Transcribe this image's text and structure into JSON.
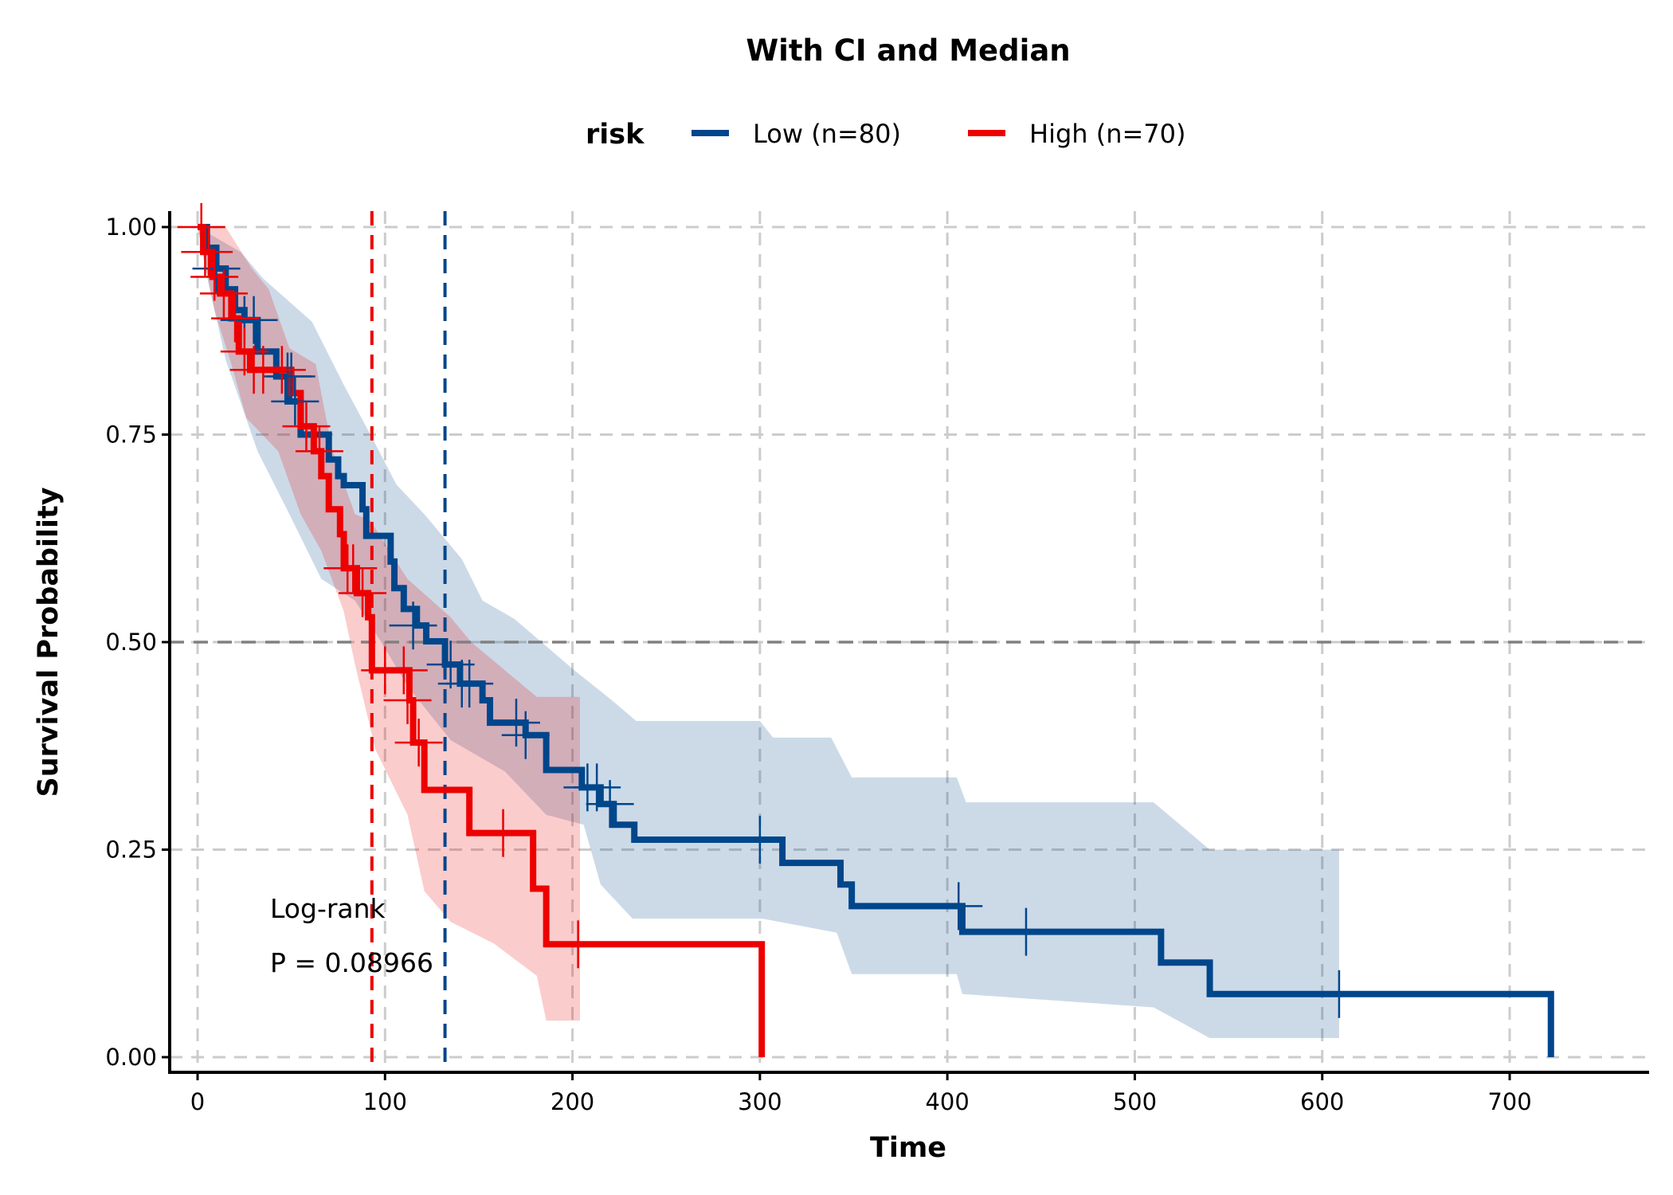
{
  "chart_data": {
    "type": "line",
    "subtype": "kaplan-meier step",
    "title": "With CI and Median",
    "xlabel": "Time",
    "ylabel": "Survival Probability",
    "xlim": [
      -15,
      775
    ],
    "ylim": [
      -0.018,
      1.02
    ],
    "x_ticks": [
      "0",
      "100",
      "200",
      "300",
      "400",
      "500",
      "600",
      "700"
    ],
    "y_ticks": [
      "0.00",
      "0.25",
      "0.50",
      "0.75",
      "1.00"
    ],
    "grid": true,
    "legend": {
      "title": "risk",
      "placement": "top"
    },
    "reference_line_y": 0.5,
    "annotation": {
      "line1": "Log-rank",
      "line2": "P = 0.08966"
    },
    "series": [
      {
        "name": "Low (n=80)",
        "color": "#00468B",
        "median": 132,
        "steps": [
          [
            0,
            1.0
          ],
          [
            5,
            0.975
          ],
          [
            10,
            0.95
          ],
          [
            15,
            0.925
          ],
          [
            20,
            0.9
          ],
          [
            25,
            0.888
          ],
          [
            32,
            0.85
          ],
          [
            42,
            0.82
          ],
          [
            48,
            0.79
          ],
          [
            55,
            0.75
          ],
          [
            70,
            0.72
          ],
          [
            75,
            0.7
          ],
          [
            78,
            0.689
          ],
          [
            88,
            0.66
          ],
          [
            90,
            0.628
          ],
          [
            103,
            0.597
          ],
          [
            105,
            0.565
          ],
          [
            110,
            0.54
          ],
          [
            117,
            0.52
          ],
          [
            122,
            0.501
          ],
          [
            132,
            0.473
          ],
          [
            140,
            0.45
          ],
          [
            152,
            0.43
          ],
          [
            156,
            0.403
          ],
          [
            175,
            0.388
          ],
          [
            186,
            0.346
          ],
          [
            205,
            0.325
          ],
          [
            215,
            0.305
          ],
          [
            222,
            0.28
          ],
          [
            233,
            0.262
          ],
          [
            312,
            0.234
          ],
          [
            343,
            0.208
          ],
          [
            349,
            0.182
          ],
          [
            408,
            0.151
          ],
          [
            514,
            0.114
          ],
          [
            540,
            0.076
          ],
          [
            722,
            0.0
          ]
        ],
        "censored": [
          [
            10,
            0.95
          ],
          [
            25,
            0.888
          ],
          [
            30,
            0.888
          ],
          [
            48,
            0.82
          ],
          [
            50,
            0.82
          ],
          [
            52,
            0.79
          ],
          [
            115,
            0.52
          ],
          [
            135,
            0.473
          ],
          [
            141,
            0.45
          ],
          [
            145,
            0.45
          ],
          [
            170,
            0.403
          ],
          [
            175,
            0.388
          ],
          [
            208,
            0.325
          ],
          [
            213,
            0.325
          ],
          [
            220,
            0.305
          ],
          [
            300,
            0.262
          ],
          [
            406,
            0.182
          ],
          [
            442,
            0.151
          ],
          [
            609,
            0.076
          ]
        ],
        "ci_upper": [
          [
            0,
            1.0
          ],
          [
            23,
            0.97
          ],
          [
            35,
            0.938
          ],
          [
            61,
            0.886
          ],
          [
            78,
            0.81
          ],
          [
            95,
            0.738
          ],
          [
            106,
            0.69
          ],
          [
            121,
            0.654
          ],
          [
            141,
            0.6
          ],
          [
            152,
            0.55
          ],
          [
            169,
            0.528
          ],
          [
            201,
            0.466
          ],
          [
            221,
            0.43
          ],
          [
            234,
            0.405
          ],
          [
            300,
            0.405
          ],
          [
            307,
            0.385
          ],
          [
            338,
            0.385
          ],
          [
            349,
            0.337
          ],
          [
            405,
            0.337
          ],
          [
            410,
            0.307
          ],
          [
            510,
            0.307
          ],
          [
            540,
            0.25
          ],
          [
            609,
            0.25
          ]
        ],
        "ci_lower": [
          [
            0,
            1.0
          ],
          [
            6,
            0.93
          ],
          [
            15,
            0.84
          ],
          [
            32,
            0.73
          ],
          [
            49,
            0.654
          ],
          [
            66,
            0.576
          ],
          [
            84,
            0.55
          ],
          [
            98,
            0.5
          ],
          [
            112,
            0.447
          ],
          [
            135,
            0.382
          ],
          [
            164,
            0.344
          ],
          [
            186,
            0.292
          ],
          [
            206,
            0.28
          ],
          [
            215,
            0.208
          ],
          [
            232,
            0.167
          ],
          [
            301,
            0.167
          ],
          [
            341,
            0.15
          ],
          [
            349,
            0.1
          ],
          [
            405,
            0.1
          ],
          [
            408,
            0.076
          ],
          [
            510,
            0.06
          ],
          [
            540,
            0.023
          ],
          [
            609,
            0.023
          ]
        ]
      },
      {
        "name": "High (n=70)",
        "color": "#ED0000",
        "median": 93,
        "steps": [
          [
            0,
            1.0
          ],
          [
            3,
            0.97
          ],
          [
            8,
            0.94
          ],
          [
            12,
            0.92
          ],
          [
            18,
            0.89
          ],
          [
            22,
            0.85
          ],
          [
            28,
            0.828
          ],
          [
            50,
            0.8
          ],
          [
            55,
            0.76
          ],
          [
            62,
            0.73
          ],
          [
            66,
            0.7
          ],
          [
            70,
            0.66
          ],
          [
            76,
            0.63
          ],
          [
            78,
            0.589
          ],
          [
            85,
            0.559
          ],
          [
            91,
            0.53
          ],
          [
            93,
            0.466
          ],
          [
            113,
            0.43
          ],
          [
            115,
            0.379
          ],
          [
            121,
            0.322
          ],
          [
            145,
            0.27
          ],
          [
            179,
            0.203
          ],
          [
            186,
            0.136
          ],
          [
            301,
            0.0
          ]
        ],
        "censored": [
          [
            2,
            1.0
          ],
          [
            4,
            0.97
          ],
          [
            6,
            0.97
          ],
          [
            9,
            0.94
          ],
          [
            14,
            0.92
          ],
          [
            20,
            0.89
          ],
          [
            25,
            0.85
          ],
          [
            30,
            0.828
          ],
          [
            35,
            0.828
          ],
          [
            45,
            0.828
          ],
          [
            58,
            0.76
          ],
          [
            65,
            0.73
          ],
          [
            80,
            0.589
          ],
          [
            83,
            0.589
          ],
          [
            88,
            0.559
          ],
          [
            100,
            0.466
          ],
          [
            110,
            0.466
          ],
          [
            112,
            0.43
          ],
          [
            118,
            0.379
          ],
          [
            163,
            0.27
          ],
          [
            203,
            0.136
          ]
        ],
        "ci_upper": [
          [
            0,
            1.0
          ],
          [
            15,
            1.0
          ],
          [
            29,
            0.95
          ],
          [
            38,
            0.925
          ],
          [
            49,
            0.854
          ],
          [
            63,
            0.835
          ],
          [
            72,
            0.73
          ],
          [
            84,
            0.654
          ],
          [
            92,
            0.647
          ],
          [
            112,
            0.576
          ],
          [
            135,
            0.53
          ],
          [
            146,
            0.5
          ],
          [
            164,
            0.466
          ],
          [
            181,
            0.434
          ],
          [
            204,
            0.434
          ]
        ],
        "ci_lower": [
          [
            0,
            1.0
          ],
          [
            9,
            0.9
          ],
          [
            18,
            0.835
          ],
          [
            26,
            0.77
          ],
          [
            43,
            0.73
          ],
          [
            55,
            0.654
          ],
          [
            66,
            0.61
          ],
          [
            78,
            0.537
          ],
          [
            84,
            0.473
          ],
          [
            95,
            0.37
          ],
          [
            112,
            0.292
          ],
          [
            121,
            0.2
          ],
          [
            135,
            0.163
          ],
          [
            158,
            0.137
          ],
          [
            181,
            0.098
          ],
          [
            186,
            0.044
          ],
          [
            204,
            0.044
          ]
        ]
      }
    ]
  }
}
